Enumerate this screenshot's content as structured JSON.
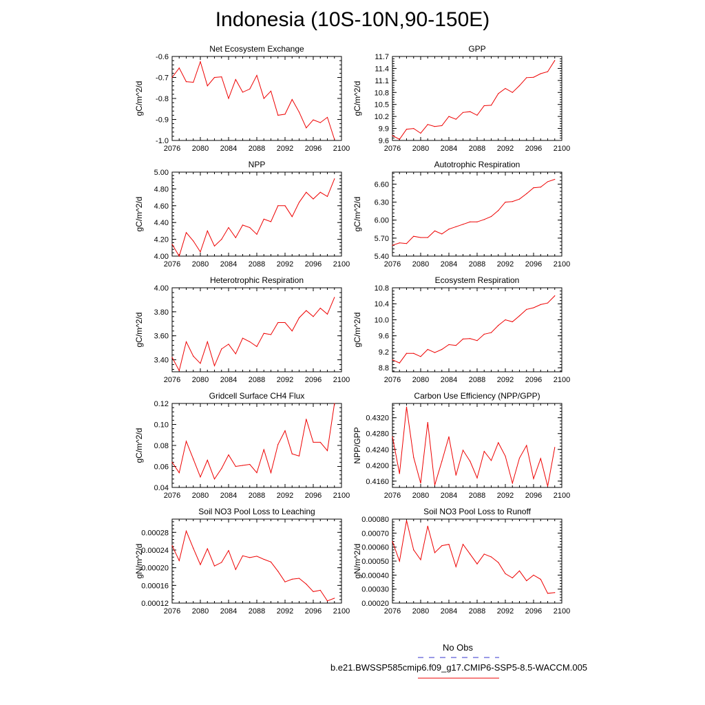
{
  "title": "Indonesia (10S-10N,90-150E)",
  "colors": {
    "series": "#ee0000",
    "obs": "#3333cc",
    "axis": "#000000"
  },
  "legend": {
    "obs_label": "No Obs",
    "run_label": "b.e21.BWSSP585cmip6.f09_g17.CMIP6-SSP5-8.5-WACCM.005"
  },
  "chart_data": [
    {
      "type": "line",
      "title": "Net Ecosystem Exchange",
      "ylabel": "gC/m^2/d",
      "xlim": [
        2076,
        2100
      ],
      "xticks": [
        2076,
        2080,
        2084,
        2088,
        2092,
        2096,
        2100
      ],
      "ylim": [
        -1.0,
        -0.6
      ],
      "yticks": [
        -1.0,
        -0.9,
        -0.8,
        -0.7,
        -0.6
      ],
      "ytick_labels": [
        "-1.0",
        "-0.9",
        "-0.8",
        "-0.7",
        "-0.6"
      ],
      "x": [
        2076,
        2077,
        2078,
        2079,
        2080,
        2081,
        2082,
        2083,
        2084,
        2085,
        2086,
        2087,
        2088,
        2089,
        2090,
        2091,
        2092,
        2093,
        2094,
        2095,
        2096,
        2097,
        2098,
        2099
      ],
      "values": [
        -0.7,
        -0.655,
        -0.72,
        -0.723,
        -0.625,
        -0.74,
        -0.7,
        -0.697,
        -0.8,
        -0.71,
        -0.77,
        -0.755,
        -0.69,
        -0.8,
        -0.765,
        -0.88,
        -0.875,
        -0.805,
        -0.865,
        -0.94,
        -0.902,
        -0.915,
        -0.89,
        -0.995
      ]
    },
    {
      "type": "line",
      "title": "GPP",
      "ylabel": "gC/m^2/d",
      "xlim": [
        2076,
        2100
      ],
      "xticks": [
        2076,
        2080,
        2084,
        2088,
        2092,
        2096,
        2100
      ],
      "ylim": [
        9.6,
        11.7
      ],
      "yticks": [
        9.6,
        9.9,
        10.2,
        10.5,
        10.8,
        11.1,
        11.4,
        11.7
      ],
      "ytick_labels": [
        "9.6",
        "9.9",
        "10.2",
        "10.5",
        "10.8",
        "11.1",
        "11.4",
        "11.7"
      ],
      "x": [
        2076,
        2077,
        2078,
        2079,
        2080,
        2081,
        2082,
        2083,
        2084,
        2085,
        2086,
        2087,
        2088,
        2089,
        2090,
        2091,
        2092,
        2093,
        2094,
        2095,
        2096,
        2097,
        2098,
        2099
      ],
      "values": [
        9.72,
        9.63,
        9.88,
        9.9,
        9.78,
        10.0,
        9.95,
        9.97,
        10.2,
        10.13,
        10.3,
        10.32,
        10.23,
        10.47,
        10.48,
        10.77,
        10.9,
        10.8,
        10.97,
        11.17,
        11.18,
        11.27,
        11.32,
        11.6
      ]
    },
    {
      "type": "line",
      "title": "NPP",
      "ylabel": "gC/m^2/d",
      "xlim": [
        2076,
        2100
      ],
      "xticks": [
        2076,
        2080,
        2084,
        2088,
        2092,
        2096,
        2100
      ],
      "ylim": [
        4.0,
        5.0
      ],
      "yticks": [
        4.0,
        4.2,
        4.4,
        4.6,
        4.8,
        5.0
      ],
      "ytick_labels": [
        "4.00",
        "4.20",
        "4.40",
        "4.60",
        "4.80",
        "5.00"
      ],
      "x": [
        2076,
        2077,
        2078,
        2079,
        2080,
        2081,
        2082,
        2083,
        2084,
        2085,
        2086,
        2087,
        2088,
        2089,
        2090,
        2091,
        2092,
        2093,
        2094,
        2095,
        2096,
        2097,
        2098,
        2099
      ],
      "values": [
        4.14,
        4.0,
        4.28,
        4.18,
        4.05,
        4.3,
        4.12,
        4.2,
        4.34,
        4.22,
        4.37,
        4.34,
        4.26,
        4.44,
        4.41,
        4.6,
        4.6,
        4.47,
        4.64,
        4.76,
        4.68,
        4.76,
        4.71,
        4.92
      ]
    },
    {
      "type": "line",
      "title": "Autotrophic Respiration",
      "ylabel": "gC/m^2/d",
      "xlim": [
        2076,
        2100
      ],
      "xticks": [
        2076,
        2080,
        2084,
        2088,
        2092,
        2096,
        2100
      ],
      "ylim": [
        5.4,
        6.8
      ],
      "yticks": [
        5.4,
        5.7,
        6.0,
        6.3,
        6.6
      ],
      "ytick_labels": [
        "5.40",
        "5.70",
        "6.00",
        "6.30",
        "6.60"
      ],
      "x": [
        2076,
        2077,
        2078,
        2079,
        2080,
        2081,
        2082,
        2083,
        2084,
        2085,
        2086,
        2087,
        2088,
        2089,
        2090,
        2091,
        2092,
        2093,
        2094,
        2095,
        2096,
        2097,
        2098,
        2099
      ],
      "values": [
        5.58,
        5.62,
        5.61,
        5.73,
        5.71,
        5.71,
        5.82,
        5.77,
        5.85,
        5.89,
        5.93,
        5.97,
        5.97,
        6.01,
        6.06,
        6.16,
        6.3,
        6.31,
        6.35,
        6.44,
        6.54,
        6.55,
        6.64,
        6.68
      ]
    },
    {
      "type": "line",
      "title": "Heterotrophic Respiration",
      "ylabel": "gC/m^2/d",
      "xlim": [
        2076,
        2100
      ],
      "xticks": [
        2076,
        2080,
        2084,
        2088,
        2092,
        2096,
        2100
      ],
      "ylim": [
        3.3,
        4.0
      ],
      "yticks": [
        3.4,
        3.6,
        3.8,
        4.0
      ],
      "ytick_labels": [
        "3.40",
        "3.60",
        "3.80",
        "4.00"
      ],
      "x": [
        2076,
        2077,
        2078,
        2079,
        2080,
        2081,
        2082,
        2083,
        2084,
        2085,
        2086,
        2087,
        2088,
        2089,
        2090,
        2091,
        2092,
        2093,
        2094,
        2095,
        2096,
        2097,
        2098,
        2099
      ],
      "values": [
        3.42,
        3.31,
        3.55,
        3.43,
        3.37,
        3.55,
        3.35,
        3.49,
        3.53,
        3.45,
        3.58,
        3.55,
        3.51,
        3.62,
        3.61,
        3.71,
        3.71,
        3.64,
        3.75,
        3.81,
        3.76,
        3.83,
        3.78,
        3.92
      ]
    },
    {
      "type": "line",
      "title": "Ecosystem Respiration",
      "ylabel": "gC/m^2/d",
      "xlim": [
        2076,
        2100
      ],
      "xticks": [
        2076,
        2080,
        2084,
        2088,
        2092,
        2096,
        2100
      ],
      "ylim": [
        8.7,
        10.8
      ],
      "yticks": [
        8.8,
        9.2,
        9.6,
        10.0,
        10.4,
        10.8
      ],
      "ytick_labels": [
        "8.8",
        "9.2",
        "9.6",
        "10.0",
        "10.4",
        "10.8"
      ],
      "x": [
        2076,
        2077,
        2078,
        2079,
        2080,
        2081,
        2082,
        2083,
        2084,
        2085,
        2086,
        2087,
        2088,
        2089,
        2090,
        2091,
        2092,
        2093,
        2094,
        2095,
        2096,
        2097,
        2098,
        2099
      ],
      "values": [
        9.0,
        8.92,
        9.16,
        9.16,
        9.08,
        9.26,
        9.18,
        9.26,
        9.38,
        9.36,
        9.52,
        9.53,
        9.48,
        9.64,
        9.68,
        9.86,
        10.0,
        9.95,
        10.1,
        10.26,
        10.3,
        10.38,
        10.42,
        10.6
      ]
    },
    {
      "type": "line",
      "title": "Gridcell Surface CH4 Flux",
      "ylabel": "gC/m^2/d",
      "xlim": [
        2076,
        2100
      ],
      "xticks": [
        2076,
        2080,
        2084,
        2088,
        2092,
        2096,
        2100
      ],
      "ylim": [
        0.04,
        0.12
      ],
      "yticks": [
        0.04,
        0.06,
        0.08,
        0.1,
        0.12
      ],
      "ytick_labels": [
        "0.04",
        "0.06",
        "0.08",
        "0.10",
        "0.12"
      ],
      "x": [
        2076,
        2077,
        2078,
        2079,
        2080,
        2081,
        2082,
        2083,
        2084,
        2085,
        2086,
        2087,
        2088,
        2089,
        2090,
        2091,
        2092,
        2093,
        2094,
        2095,
        2096,
        2097,
        2098,
        2099
      ],
      "values": [
        0.064,
        0.054,
        0.084,
        0.067,
        0.05,
        0.066,
        0.048,
        0.058,
        0.071,
        0.06,
        0.061,
        0.062,
        0.054,
        0.076,
        0.054,
        0.081,
        0.094,
        0.072,
        0.07,
        0.105,
        0.083,
        0.083,
        0.075,
        0.12
      ]
    },
    {
      "type": "line",
      "title": "Carbon Use Efficiency (NPP/GPP)",
      "ylabel": "NPP/GPP",
      "xlim": [
        2076,
        2100
      ],
      "xticks": [
        2076,
        2080,
        2084,
        2088,
        2092,
        2096,
        2100
      ],
      "ylim": [
        0.4144,
        0.4356
      ],
      "yticks": [
        0.416,
        0.42,
        0.424,
        0.428,
        0.432
      ],
      "ytick_labels": [
        "0.4160",
        "0.4200",
        "0.4240",
        "0.4280",
        "0.4320"
      ],
      "x": [
        2076,
        2077,
        2078,
        2079,
        2080,
        2081,
        2082,
        2083,
        2084,
        2085,
        2086,
        2087,
        2088,
        2089,
        2090,
        2091,
        2092,
        2093,
        2094,
        2095,
        2096,
        2097,
        2098,
        2099
      ],
      "values": [
        0.4272,
        0.4179,
        0.4347,
        0.422,
        0.4155,
        0.4308,
        0.415,
        0.421,
        0.4272,
        0.4175,
        0.4238,
        0.421,
        0.4168,
        0.4235,
        0.4212,
        0.4257,
        0.4223,
        0.4155,
        0.4218,
        0.425,
        0.4166,
        0.4217,
        0.4147,
        0.4245
      ]
    },
    {
      "type": "line",
      "title": "Soil NO3 Pool Loss to Leaching",
      "ylabel": "gN/m^2/d",
      "xlim": [
        2076,
        2100
      ],
      "xticks": [
        2076,
        2080,
        2084,
        2088,
        2092,
        2096,
        2100
      ],
      "ylim": [
        0.00012,
        0.00031
      ],
      "yticks": [
        0.00012,
        0.00016,
        0.0002,
        0.00024,
        0.00028
      ],
      "ytick_labels": [
        "0.00012",
        "0.00016",
        "0.00020",
        "0.00024",
        "0.00028"
      ],
      "x": [
        2076,
        2077,
        2078,
        2079,
        2080,
        2081,
        2082,
        2083,
        2084,
        2085,
        2086,
        2087,
        2088,
        2089,
        2090,
        2091,
        2092,
        2093,
        2094,
        2095,
        2096,
        2097,
        2098,
        2099
      ],
      "values": [
        0.00025,
        0.000216,
        0.000283,
        0.000244,
        0.000207,
        0.000243,
        0.000204,
        0.000212,
        0.000239,
        0.000196,
        0.000227,
        0.000223,
        0.000226,
        0.000219,
        0.000213,
        0.000192,
        0.000168,
        0.000174,
        0.000176,
        0.000163,
        0.000146,
        0.000149,
        0.000125,
        0.000131
      ]
    },
    {
      "type": "line",
      "title": "Soil NO3 Pool Loss to Runoff",
      "ylabel": "gN/m^2/d",
      "xlim": [
        2076,
        2100
      ],
      "xticks": [
        2076,
        2080,
        2084,
        2088,
        2092,
        2096,
        2100
      ],
      "ylim": [
        0.0002,
        0.0008
      ],
      "yticks": [
        0.0002,
        0.0003,
        0.0004,
        0.0005,
        0.0006,
        0.0007,
        0.0008
      ],
      "ytick_labels": [
        "0.00020",
        "0.00030",
        "0.00040",
        "0.00050",
        "0.00060",
        "0.00070",
        "0.00080"
      ],
      "x": [
        2076,
        2077,
        2078,
        2079,
        2080,
        2081,
        2082,
        2083,
        2084,
        2085,
        2086,
        2087,
        2088,
        2089,
        2090,
        2091,
        2092,
        2093,
        2094,
        2095,
        2096,
        2097,
        2098,
        2099
      ],
      "values": [
        0.00064,
        0.0005,
        0.00079,
        0.00058,
        0.00051,
        0.00075,
        0.00056,
        0.00061,
        0.00062,
        0.00046,
        0.00062,
        0.00055,
        0.00048,
        0.00055,
        0.00053,
        0.00049,
        0.00041,
        0.00038,
        0.00043,
        0.00036,
        0.0004,
        0.00037,
        0.00027,
        0.000275
      ]
    }
  ]
}
